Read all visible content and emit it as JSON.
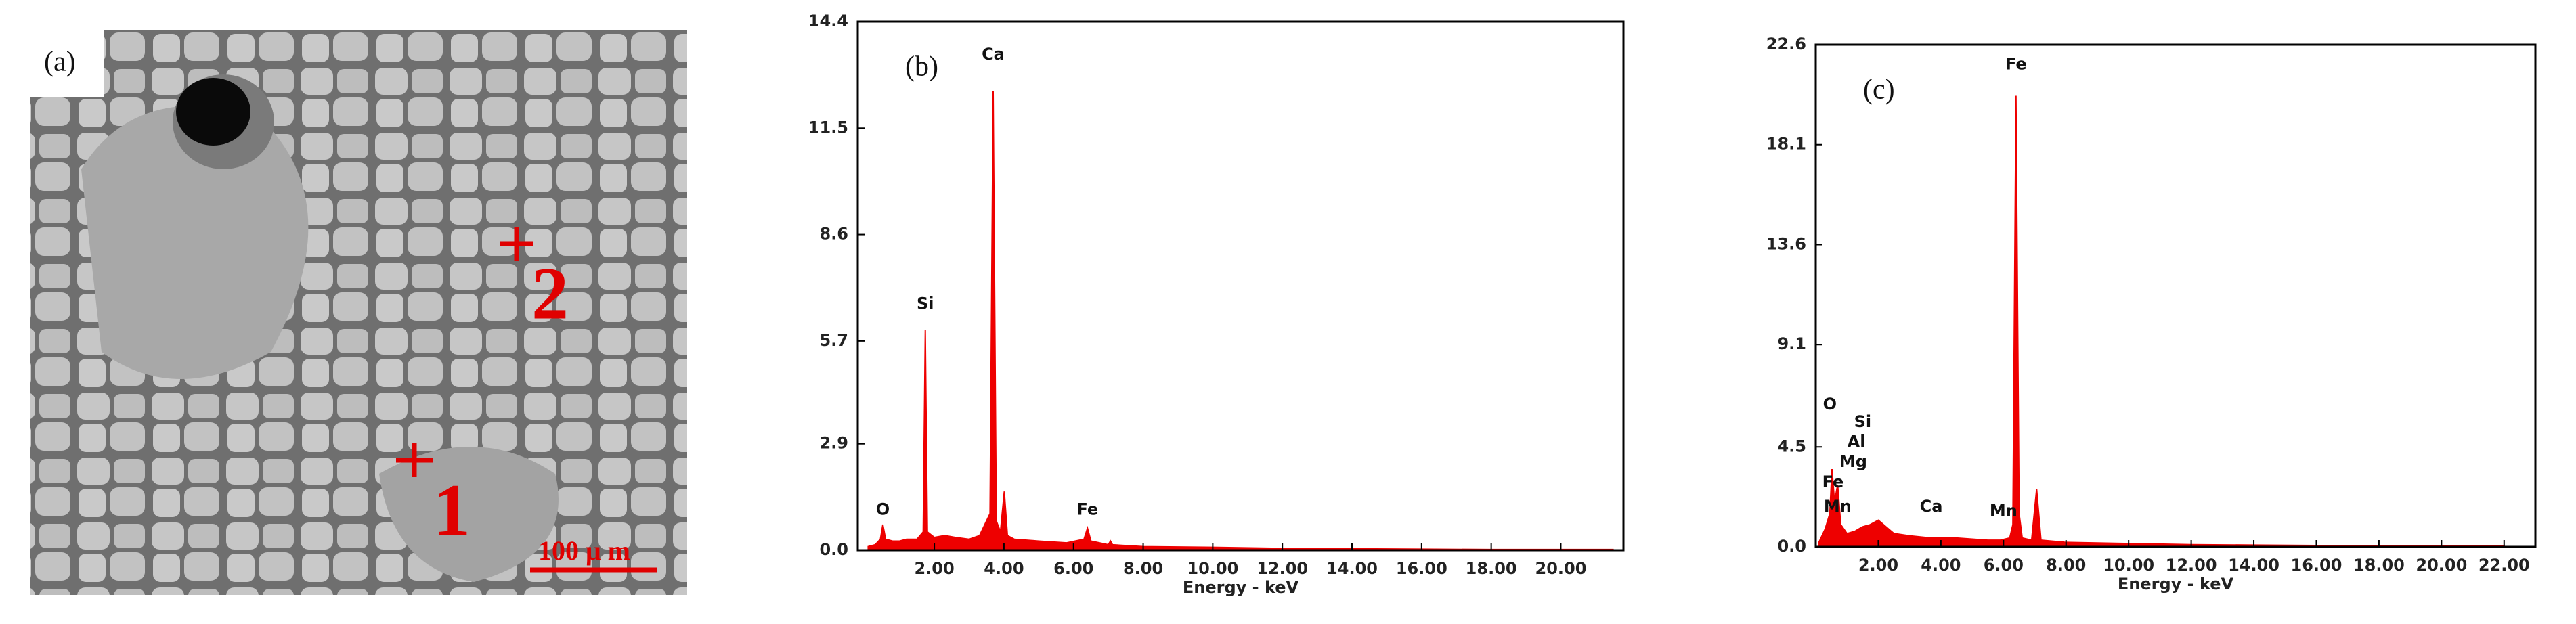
{
  "panel_a": {
    "label": "(a)",
    "points": [
      "1",
      "2"
    ],
    "scale_bar": "100 μ m"
  },
  "chart_data": [
    {
      "type": "area",
      "label": "(b)",
      "xlabel": "Energy - keV",
      "color": "#ee0000",
      "xlim": [
        -0.2,
        21.8
      ],
      "ylim": [
        0,
        14.4
      ],
      "xticks": [
        {
          "value": 2,
          "label": "2.00"
        },
        {
          "value": 4,
          "label": "4.00"
        },
        {
          "value": 6,
          "label": "6.00"
        },
        {
          "value": 8,
          "label": "8.00"
        },
        {
          "value": 10,
          "label": "10.00"
        },
        {
          "value": 12,
          "label": "12.00"
        },
        {
          "value": 14,
          "label": "14.00"
        },
        {
          "value": 16,
          "label": "16.00"
        },
        {
          "value": 18,
          "label": "18.00"
        },
        {
          "value": 20,
          "label": "20.00"
        }
      ],
      "yticks": [
        {
          "value": 0,
          "label": "0.0"
        },
        2.9,
        5.7,
        8.6,
        11.5,
        14.4
      ],
      "x": [
        0.1,
        0.3,
        0.45,
        0.52,
        0.6,
        0.8,
        1.0,
        1.2,
        1.5,
        1.68,
        1.74,
        1.8,
        2.0,
        2.3,
        2.6,
        3.0,
        3.3,
        3.6,
        3.69,
        3.78,
        3.9,
        4.01,
        4.1,
        4.3,
        5.0,
        5.8,
        6.3,
        6.4,
        6.5,
        7.0,
        7.06,
        7.12,
        8,
        10,
        12,
        14,
        16,
        18,
        20,
        21.5
      ],
      "values": [
        0.1,
        0.15,
        0.3,
        0.7,
        0.3,
        0.25,
        0.25,
        0.3,
        0.3,
        0.5,
        6.0,
        0.5,
        0.35,
        0.4,
        0.35,
        0.3,
        0.4,
        1.0,
        12.5,
        0.8,
        0.5,
        1.6,
        0.4,
        0.3,
        0.25,
        0.2,
        0.3,
        0.6,
        0.25,
        0.15,
        0.25,
        0.15,
        0.1,
        0.08,
        0.05,
        0.04,
        0.03,
        0.02,
        0.02,
        0.02
      ],
      "annotations": [
        {
          "text": "O",
          "x": 0.52,
          "y": 1.1
        },
        {
          "text": "Si",
          "x": 1.74,
          "y": 6.7
        },
        {
          "text": "Ca",
          "x": 3.69,
          "y": 13.5
        },
        {
          "text": "Fe",
          "x": 6.4,
          "y": 1.1
        }
      ]
    },
    {
      "type": "area",
      "label": "(c)",
      "xlabel": "Energy - keV",
      "color": "#ee0000",
      "xlim": [
        0,
        23
      ],
      "ylim": [
        0,
        22.6
      ],
      "xticks": [
        {
          "value": 2,
          "label": "2.00"
        },
        {
          "value": 4,
          "label": "4.00"
        },
        {
          "value": 6,
          "label": "6.00"
        },
        {
          "value": 8,
          "label": "8.00"
        },
        {
          "value": 10,
          "label": "10.00"
        },
        {
          "value": 12,
          "label": "12.00"
        },
        {
          "value": 14,
          "label": "14.00"
        },
        {
          "value": 16,
          "label": "16.00"
        },
        {
          "value": 18,
          "label": "18.00"
        },
        {
          "value": 20,
          "label": "20.00"
        },
        {
          "value": 22,
          "label": "22.00"
        }
      ],
      "yticks": [
        {
          "value": 0,
          "label": "0.0"
        },
        4.5,
        9.1,
        13.6,
        18.1,
        22.6
      ],
      "x": [
        0.1,
        0.3,
        0.45,
        0.52,
        0.6,
        0.7,
        0.8,
        1.0,
        1.25,
        1.49,
        1.74,
        2.0,
        2.5,
        3.0,
        3.69,
        4.5,
        5.5,
        5.9,
        6.2,
        6.3,
        6.4,
        6.5,
        6.6,
        6.9,
        7.06,
        7.2,
        8,
        10,
        12,
        14,
        16,
        18,
        20,
        22
      ],
      "values": [
        0.2,
        0.8,
        1.5,
        3.5,
        2.0,
        2.8,
        1.0,
        0.6,
        0.7,
        0.9,
        1.0,
        1.2,
        0.6,
        0.5,
        0.4,
        0.4,
        0.3,
        0.3,
        0.4,
        1.0,
        20.3,
        1.5,
        0.4,
        0.3,
        2.6,
        0.3,
        0.2,
        0.15,
        0.1,
        0.08,
        0.06,
        0.05,
        0.04,
        0.03
      ],
      "annotations": [
        {
          "text": "O",
          "x": 0.45,
          "y": 6.4
        },
        {
          "text": "Si",
          "x": 1.5,
          "y": 5.6
        },
        {
          "text": "Al",
          "x": 1.3,
          "y": 4.7
        },
        {
          "text": "Mg",
          "x": 1.2,
          "y": 3.8
        },
        {
          "text": "Fe",
          "x": 0.55,
          "y": 2.9
        },
        {
          "text": "Mn",
          "x": 0.7,
          "y": 1.8
        },
        {
          "text": "Ca",
          "x": 3.69,
          "y": 1.8
        },
        {
          "text": "Mn",
          "x": 6.0,
          "y": 1.6
        },
        {
          "text": "Fe",
          "x": 6.4,
          "y": 21.7
        }
      ]
    }
  ]
}
